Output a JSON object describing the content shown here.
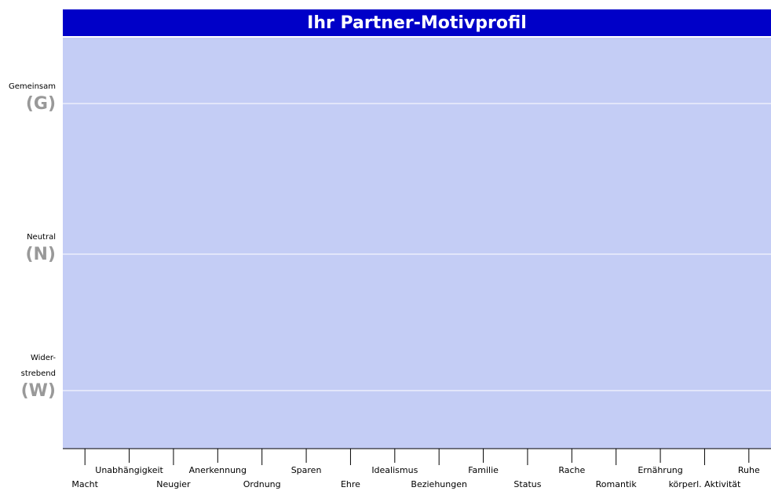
{
  "chart_data": {
    "type": "line",
    "title": "Ihr Partner-Motivprofil",
    "categories": [
      "Macht",
      "Unabhängigkeit",
      "Neugier",
      "Anerkennung",
      "Ordnung",
      "Sparen",
      "Ehre",
      "Idealismus",
      "Beziehungen",
      "Familie",
      "Status",
      "Rache",
      "Romantik",
      "Ernährung",
      "körperl. Aktivität",
      "Ruhe"
    ],
    "levels": [
      {
        "label": [
          "Gemeinsam"
        ],
        "code": "(G)"
      },
      {
        "label": [
          "Neutral"
        ],
        "code": "(N)"
      },
      {
        "label": [
          "Wider-",
          "strebend"
        ],
        "code": "(W)"
      }
    ]
  }
}
